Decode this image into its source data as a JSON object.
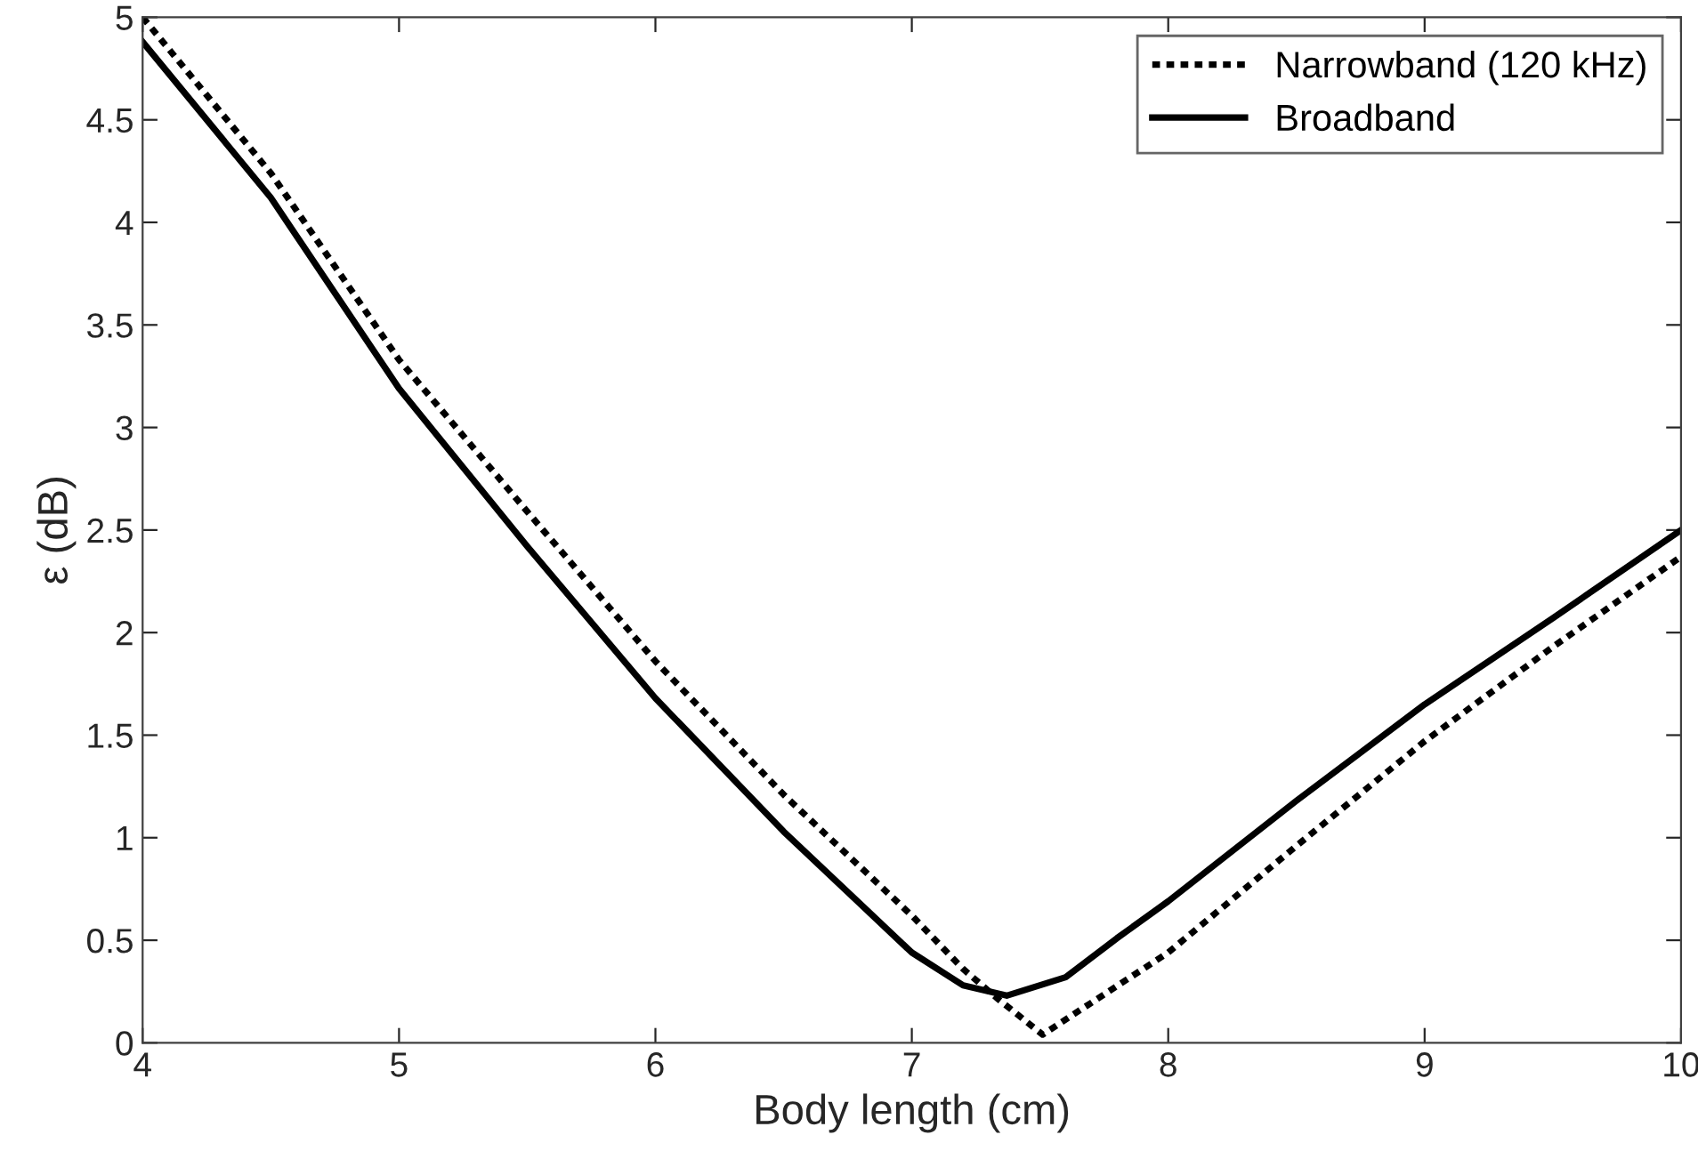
{
  "chart_data": {
    "type": "line",
    "xlabel": "Body length (cm)",
    "ylabel": "ε (dB)",
    "xlim": [
      4,
      10
    ],
    "xticks": [
      4,
      5,
      6,
      7,
      8,
      9,
      10
    ],
    "ylim": [
      0,
      5
    ],
    "yticks": [
      0,
      0.5,
      1,
      1.5,
      2,
      2.5,
      3,
      3.5,
      4,
      4.5,
      5
    ],
    "grid": false,
    "legend": "top right",
    "series": [
      {
        "name": "Narrowband (120 kHz)",
        "color": "#000000",
        "line_style": "dotted",
        "x": [
          4,
          4.5,
          5,
          5.5,
          6,
          6.5,
          7,
          7.2,
          7.33,
          7.51,
          8,
          8.5,
          9,
          9.5,
          10
        ],
        "values": [
          5.0,
          4.24,
          3.33,
          2.59,
          1.86,
          1.21,
          0.62,
          0.36,
          0.22,
          0.04,
          0.44,
          0.96,
          1.47,
          1.93,
          2.37
        ]
      },
      {
        "name": "Broadband",
        "color": "#000000",
        "line_style": "solid",
        "x": [
          4,
          4.5,
          5,
          5.5,
          6,
          6.5,
          7,
          7.2,
          7.37,
          7.6,
          7.8,
          8,
          8.5,
          9,
          9.5,
          10
        ],
        "values": [
          4.88,
          4.12,
          3.19,
          2.42,
          1.68,
          1.03,
          0.44,
          0.28,
          0.23,
          0.32,
          0.51,
          0.69,
          1.18,
          1.65,
          2.07,
          2.5
        ]
      }
    ]
  }
}
